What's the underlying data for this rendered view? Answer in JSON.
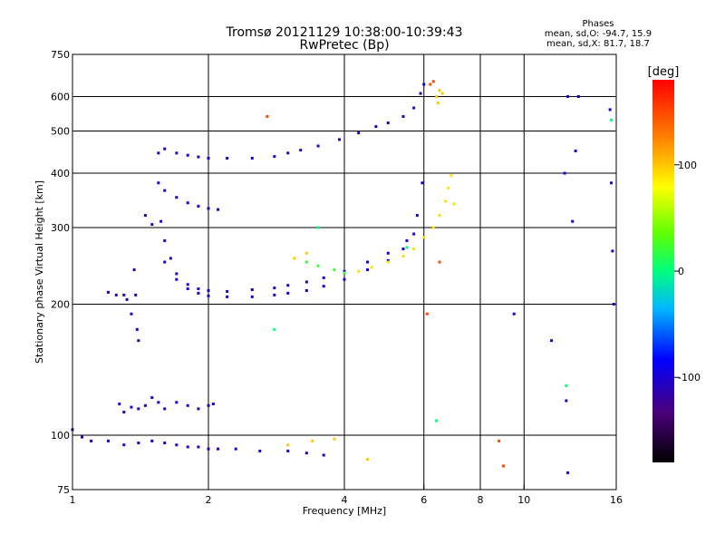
{
  "header": {
    "title_line1": "Tromsø 20121129 10:38:00-10:39:43",
    "title_line2": "RwPretec (Bp)",
    "stats_title": "Phases",
    "stats_o": "mean, sd,O: -94.7, 15.9",
    "stats_x": "mean, sd,X:  81.7, 18.7"
  },
  "colorbar": {
    "label": "[deg]",
    "range": [
      -180,
      180
    ],
    "ticks": [
      {
        "value": 100,
        "label": "100"
      },
      {
        "value": 0,
        "label": "0"
      },
      {
        "value": -100,
        "label": "-100"
      }
    ]
  },
  "chart_data": {
    "type": "scatter",
    "xlabel": "Frequency [MHz]",
    "ylabel": "Stationary phase Virtual Height [km]",
    "xscale": "log",
    "yscale": "log",
    "xlim": [
      1,
      16
    ],
    "ylim": [
      75,
      750
    ],
    "x_ticks": [
      {
        "value": 1,
        "label": "1"
      },
      {
        "value": 2,
        "label": "2"
      },
      {
        "value": 4,
        "label": "4"
      },
      {
        "value": 6,
        "label": "6"
      },
      {
        "value": 8,
        "label": "8"
      },
      {
        "value": 10,
        "label": "10"
      },
      {
        "value": 16,
        "label": "16"
      }
    ],
    "y_ticks": [
      {
        "value": 75,
        "label": "75"
      },
      {
        "value": 100,
        "label": "100"
      },
      {
        "value": 200,
        "label": "200"
      },
      {
        "value": 300,
        "label": "300"
      },
      {
        "value": 400,
        "label": "400"
      },
      {
        "value": 500,
        "label": "500"
      },
      {
        "value": 600,
        "label": "600"
      },
      {
        "value": 750,
        "label": "750"
      }
    ],
    "grid_x": [
      2,
      4,
      6,
      8,
      10
    ],
    "grid_y": [
      100,
      200,
      300,
      400,
      500,
      600
    ],
    "series": [
      {
        "phase": -100,
        "points": [
          [
            1.0,
            103
          ],
          [
            1.05,
            99
          ],
          [
            1.1,
            97
          ],
          [
            1.2,
            97
          ],
          [
            1.3,
            95
          ],
          [
            1.4,
            96
          ],
          [
            1.5,
            97
          ],
          [
            1.6,
            96
          ],
          [
            1.7,
            95
          ],
          [
            1.8,
            94
          ],
          [
            1.9,
            94
          ],
          [
            2.0,
            93
          ],
          [
            2.1,
            93
          ],
          [
            2.3,
            93
          ],
          [
            2.6,
            92
          ],
          [
            3.0,
            92
          ],
          [
            3.3,
            91
          ],
          [
            3.6,
            90
          ]
        ]
      },
      {
        "phase": -105,
        "points": [
          [
            1.27,
            118
          ],
          [
            1.3,
            113
          ],
          [
            1.35,
            116
          ],
          [
            1.4,
            115
          ],
          [
            1.45,
            117
          ],
          [
            1.5,
            122
          ],
          [
            1.55,
            119
          ],
          [
            1.6,
            115
          ],
          [
            1.7,
            119
          ],
          [
            1.8,
            117
          ],
          [
            1.9,
            115
          ],
          [
            2.0,
            117
          ],
          [
            2.05,
            118
          ]
        ]
      },
      {
        "phase": -110,
        "points": [
          [
            1.2,
            213
          ],
          [
            1.25,
            210
          ],
          [
            1.3,
            210
          ],
          [
            1.32,
            205
          ],
          [
            1.35,
            190
          ],
          [
            1.37,
            240
          ],
          [
            1.38,
            210
          ],
          [
            1.39,
            175
          ],
          [
            1.4,
            165
          ],
          [
            1.45,
            320
          ],
          [
            1.5,
            305
          ]
        ]
      },
      {
        "phase": -100,
        "points": [
          [
            1.57,
            310
          ],
          [
            1.6,
            280
          ],
          [
            1.65,
            255
          ],
          [
            1.7,
            235
          ],
          [
            1.8,
            222
          ],
          [
            1.9,
            217
          ],
          [
            2.0,
            215
          ],
          [
            2.2,
            214
          ],
          [
            2.5,
            216
          ],
          [
            2.8,
            218
          ],
          [
            3.0,
            221
          ],
          [
            3.3,
            225
          ],
          [
            3.6,
            230
          ],
          [
            4.0,
            238
          ],
          [
            4.5,
            250
          ],
          [
            5.0,
            262
          ],
          [
            5.5,
            280
          ],
          [
            5.8,
            320
          ],
          [
            5.95,
            380
          ]
        ]
      },
      {
        "phase": -95,
        "points": [
          [
            1.6,
            250
          ],
          [
            1.7,
            228
          ],
          [
            1.8,
            217
          ],
          [
            1.9,
            212
          ],
          [
            2.0,
            209
          ],
          [
            2.2,
            208
          ],
          [
            2.5,
            208
          ],
          [
            2.8,
            210
          ],
          [
            3.0,
            212
          ],
          [
            3.3,
            215
          ],
          [
            3.6,
            220
          ],
          [
            4.0,
            228
          ],
          [
            4.5,
            240
          ],
          [
            5.0,
            252
          ],
          [
            5.4,
            268
          ],
          [
            5.7,
            290
          ]
        ]
      },
      {
        "phase": -100,
        "points": [
          [
            1.55,
            380
          ],
          [
            1.6,
            365
          ],
          [
            1.7,
            352
          ],
          [
            1.8,
            342
          ],
          [
            1.9,
            336
          ],
          [
            2.0,
            332
          ],
          [
            2.1,
            330
          ]
        ]
      },
      {
        "phase": -105,
        "points": [
          [
            1.55,
            445
          ],
          [
            1.6,
            455
          ],
          [
            1.7,
            445
          ],
          [
            1.8,
            440
          ],
          [
            1.9,
            436
          ],
          [
            2.0,
            433
          ],
          [
            2.2,
            433
          ],
          [
            2.5,
            433
          ],
          [
            2.8,
            437
          ],
          [
            3.0,
            445
          ],
          [
            3.2,
            452
          ],
          [
            3.5,
            462
          ],
          [
            3.9,
            478
          ],
          [
            4.3,
            495
          ],
          [
            4.7,
            512
          ],
          [
            5.0,
            522
          ],
          [
            5.4,
            540
          ],
          [
            5.7,
            565
          ],
          [
            5.9,
            610
          ],
          [
            6.0,
            640
          ]
        ]
      },
      {
        "phase": 20,
        "points": [
          [
            3.3,
            250
          ],
          [
            3.5,
            245
          ],
          [
            3.8,
            240
          ],
          [
            4.0,
            236
          ]
        ]
      },
      {
        "phase": 90,
        "points": [
          [
            4.3,
            238
          ],
          [
            4.6,
            243
          ],
          [
            5.0,
            250
          ],
          [
            5.4,
            258
          ],
          [
            5.7,
            268
          ],
          [
            6.0,
            285
          ],
          [
            6.3,
            300
          ],
          [
            6.5,
            320
          ],
          [
            6.7,
            345
          ],
          [
            6.8,
            370
          ],
          [
            6.9,
            395
          ],
          [
            7.0,
            340
          ]
        ]
      },
      {
        "phase": 100,
        "points": [
          [
            3.1,
            255
          ],
          [
            3.3,
            262
          ],
          [
            6.4,
            600
          ],
          [
            6.5,
            620
          ],
          [
            6.6,
            610
          ],
          [
            6.45,
            580
          ],
          [
            3.0,
            95
          ],
          [
            3.4,
            97
          ],
          [
            3.8,
            98
          ],
          [
            4.5,
            88
          ]
        ]
      },
      {
        "phase": 150,
        "points": [
          [
            2.7,
            540
          ],
          [
            6.2,
            640
          ],
          [
            6.3,
            650
          ],
          [
            6.1,
            190
          ],
          [
            6.5,
            250
          ],
          [
            8.8,
            97
          ],
          [
            9.0,
            85
          ]
        ]
      },
      {
        "phase": -100,
        "points": [
          [
            12.5,
            600
          ],
          [
            12.3,
            400
          ],
          [
            12.8,
            310
          ],
          [
            13.0,
            450
          ],
          [
            15.5,
            560
          ],
          [
            15.6,
            380
          ],
          [
            15.7,
            265
          ],
          [
            15.8,
            200
          ],
          [
            12.5,
            82
          ],
          [
            9.5,
            190
          ],
          [
            11.5,
            165
          ],
          [
            13.2,
            600
          ],
          [
            12.4,
            120
          ]
        ]
      },
      {
        "phase": 0,
        "points": [
          [
            6.4,
            108
          ],
          [
            12.4,
            130
          ],
          [
            3.5,
            300
          ],
          [
            2.8,
            175
          ],
          [
            15.6,
            530
          ],
          [
            5.5,
            270
          ]
        ]
      }
    ]
  }
}
